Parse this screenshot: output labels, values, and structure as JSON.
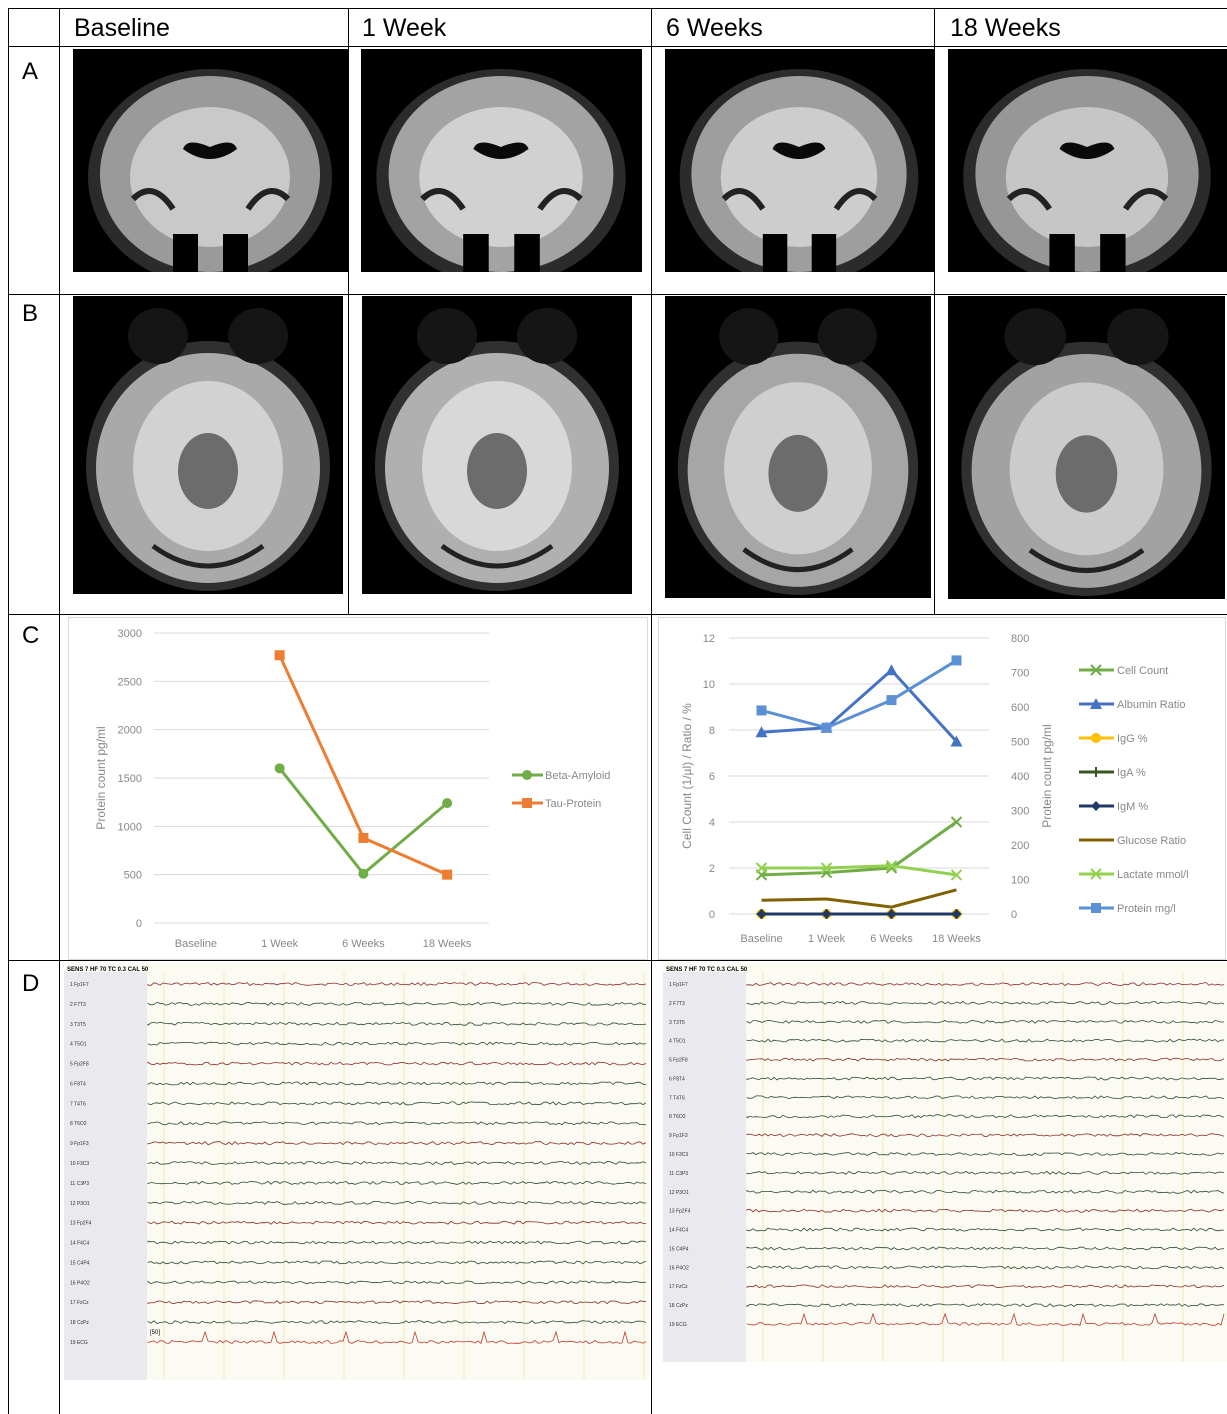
{
  "columns": [
    "Baseline",
    "1 Week",
    "6 Weeks",
    "18 Weeks"
  ],
  "rows": [
    "A",
    "B",
    "C",
    "D"
  ],
  "colors": {
    "beta_amyloid": "#70ad47",
    "tau_protein": "#ed7d31",
    "cell_count": "#70ad47",
    "albumin_ratio": "#4472c4",
    "igg": "#ffc000",
    "iga": "#375623",
    "igm": "#203864",
    "glucose_ratio": "#806000",
    "lactate": "#92d050",
    "protein": "#5b8fd6"
  },
  "chart_data": [
    {
      "type": "line",
      "categories": [
        "Baseline",
        "1 Week",
        "6 Weeks",
        "18 Weeks"
      ],
      "ylabel": "Protein count pg/ml",
      "ylim": [
        0,
        3000
      ],
      "yticks": [
        "0",
        "500",
        "1000",
        "1500",
        "2000",
        "2500",
        "3000"
      ],
      "legend_position": "right",
      "series": [
        {
          "name": "Beta-Amyloid",
          "marker": "circle",
          "values": [
            null,
            1600,
            510,
            1240
          ]
        },
        {
          "name": "Tau-Protein",
          "marker": "square",
          "values": [
            null,
            2770,
            880,
            500
          ]
        }
      ]
    },
    {
      "type": "line",
      "categories": [
        "Baseline",
        "1 Week",
        "6 Weeks",
        "18 Weeks"
      ],
      "ylabel": "Cell Count (1/µl) / Ratio / %",
      "ylabel_right": "Protein count pg/ml",
      "ylim": [
        0,
        12
      ],
      "ylim_right": [
        0,
        800
      ],
      "yticks": [
        "0",
        "2",
        "4",
        "6",
        "8",
        "10",
        "12"
      ],
      "yticks_right": [
        "0",
        "100",
        "200",
        "300",
        "400",
        "500",
        "600",
        "700",
        "800"
      ],
      "legend_position": "right",
      "series": [
        {
          "name": "Cell Count",
          "marker": "x",
          "axis": "left",
          "values": [
            1.7,
            1.8,
            2.0,
            4.0
          ]
        },
        {
          "name": "Albumin Ratio",
          "marker": "triangle",
          "axis": "left",
          "values": [
            7.9,
            8.1,
            10.6,
            7.5
          ]
        },
        {
          "name": "IgG %",
          "marker": "circle",
          "axis": "left",
          "values": [
            0,
            0,
            0,
            0
          ]
        },
        {
          "name": "IgA %",
          "marker": "plus",
          "axis": "left",
          "values": [
            0,
            0,
            0,
            0
          ]
        },
        {
          "name": "IgM %",
          "marker": "diamond",
          "axis": "left",
          "values": [
            0,
            0,
            0,
            0
          ]
        },
        {
          "name": "Glucose Ratio",
          "marker": "none",
          "axis": "left",
          "values": [
            0.6,
            0.65,
            0.3,
            1.05
          ]
        },
        {
          "name": "Lactate mmol/l",
          "marker": "x",
          "axis": "left",
          "values": [
            2.0,
            2.0,
            2.1,
            1.7
          ]
        },
        {
          "name": "Protein mg/l",
          "marker": "square",
          "axis": "right",
          "values": [
            590,
            540,
            620,
            735
          ]
        }
      ]
    }
  ],
  "eeg_left": {
    "header": "SENS 7   HF 70   TC 0.3   CAL 50",
    "channels": [
      "1 Fp1F7",
      "2 F7T3",
      "3 T3T5",
      "4 T5O1",
      "5 Fp2F8",
      "6 F8T4",
      "7 T4T6",
      "8 T6O2",
      "9 Fp1F3",
      "10 F3C3",
      "11 C3P3",
      "12 P3O1",
      "13 Fp2F4",
      "14 F4C4",
      "15 C4P4",
      "16 P4O2",
      "17 FzCz",
      "18 CzPz",
      "19 ECG"
    ],
    "calibration": "[50]"
  },
  "eeg_right": {
    "header": "SENS 7   HF 70   TC 0.3   CAL 50",
    "channels": [
      "1 Fp1F7",
      "2 F7T3",
      "3 T3T5",
      "4 T5O1",
      "5 Fp2F8",
      "6 F8T4",
      "7 T4T6",
      "8 T6O2",
      "9 Fp1F3",
      "10 F3C3",
      "11 C3P3",
      "12 P3O1",
      "13 Fp2F4",
      "14 F4C4",
      "15 C4P4",
      "16 P4O2",
      "17 FzCz",
      "18 CzPz",
      "19 ECG"
    ]
  }
}
